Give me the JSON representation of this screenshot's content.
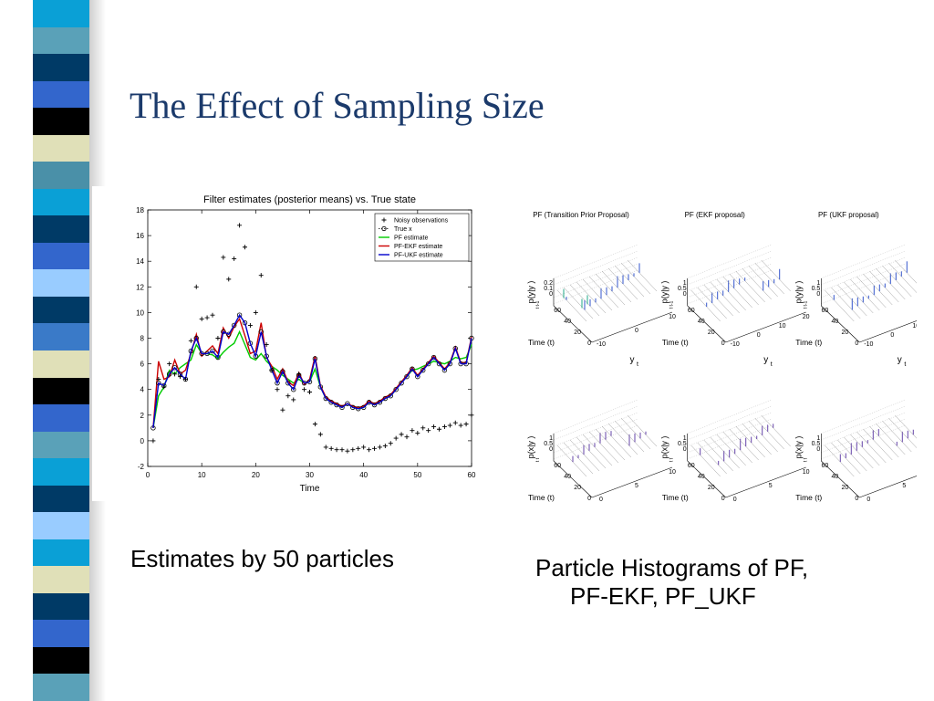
{
  "slide": {
    "title": "The Effect of Sampling Size",
    "caption_left": "Estimates by 50 particles",
    "caption_right_line1": "Particle Histograms of PF,",
    "caption_right_line2": "PF-EKF, PF_UKF"
  },
  "decoration": {
    "stripe_colors": [
      "#0aa0d6",
      "#5aa1b8",
      "#003a66",
      "#3366cc",
      "#000000",
      "#e0e0b8",
      "#4a90a8",
      "#0aa0d6",
      "#003a66",
      "#3366cc",
      "#99ccff",
      "#003a66",
      "#3a7ac8",
      "#e0e0b8",
      "#000000",
      "#3366cc",
      "#5aa1b8",
      "#0aa0d6",
      "#003a66",
      "#99ccff",
      "#0aa0d6",
      "#e0e0b8",
      "#003a66",
      "#3366cc",
      "#000000",
      "#5aa1b8"
    ]
  },
  "chart_data": [
    {
      "type": "line",
      "title": "Filter estimates (posterior means) vs. True state",
      "xlabel": "Time",
      "ylabel": "",
      "xlim": [
        0,
        60
      ],
      "ylim": [
        -2,
        18
      ],
      "xticks": [
        0,
        10,
        20,
        30,
        40,
        50,
        60
      ],
      "yticks": [
        -2,
        0,
        2,
        4,
        6,
        8,
        10,
        12,
        14,
        16,
        18
      ],
      "grid": false,
      "legend": "top-right",
      "x": [
        1,
        2,
        3,
        4,
        5,
        6,
        7,
        8,
        9,
        10,
        11,
        12,
        13,
        14,
        15,
        16,
        17,
        18,
        19,
        20,
        21,
        22,
        23,
        24,
        25,
        26,
        27,
        28,
        29,
        30,
        31,
        32,
        33,
        34,
        35,
        36,
        37,
        38,
        39,
        40,
        41,
        42,
        43,
        44,
        45,
        46,
        47,
        48,
        49,
        50,
        51,
        52,
        53,
        54,
        55,
        56,
        57,
        58,
        59,
        60
      ],
      "series": [
        {
          "name": "Noisy observations",
          "color": "#000000",
          "style": "marker-plus",
          "values": [
            0,
            4.8,
            4.2,
            6,
            5.2,
            5,
            4.8,
            7.8,
            12,
            9.5,
            9.6,
            9.8,
            8,
            14.3,
            12.6,
            14.2,
            16.8,
            15.1,
            9,
            10,
            12.9,
            7.5,
            5.5,
            4,
            2.4,
            3.5,
            3.2,
            5.2,
            4,
            3.8,
            1.3,
            0.5,
            -0.5,
            -0.6,
            -0.7,
            -0.7,
            -0.8,
            -0.7,
            -0.6,
            -0.5,
            -0.7,
            -0.6,
            -0.5,
            -0.4,
            -0.2,
            0.2,
            0.5,
            0.3,
            0.8,
            0.6,
            1,
            0.8,
            1.1,
            0.9,
            1.1,
            1.2,
            1.4,
            1.2,
            1.3,
            2
          ]
        },
        {
          "name": "True x",
          "color": "#000000",
          "style": "dotted-circle",
          "values": [
            1,
            4.5,
            4.3,
            5.2,
            5.7,
            5.2,
            4.8,
            7,
            8,
            6.8,
            6.8,
            7,
            6.5,
            8.5,
            8.3,
            9,
            9.8,
            9.2,
            7.6,
            6.6,
            8.5,
            6.6,
            5.5,
            4.5,
            5.4,
            4.5,
            4,
            5.1,
            4.5,
            4.6,
            6.4,
            4.2,
            3.3,
            3,
            2.8,
            2.6,
            2.9,
            2.6,
            2.5,
            2.6,
            3,
            2.8,
            3,
            3.3,
            3.5,
            4,
            4.5,
            5,
            5.6,
            5,
            5.5,
            6,
            6.5,
            6,
            5.5,
            6,
            7.2,
            6,
            6,
            8
          ]
        },
        {
          "name": "PF estimate",
          "color": "#00cc00",
          "style": "line",
          "values": [
            1,
            3.5,
            4.2,
            5.5,
            5.2,
            5.7,
            6,
            6.3,
            7.5,
            6.8,
            6.8,
            6.7,
            6.4,
            6.9,
            7.3,
            7.6,
            8.5,
            7.5,
            6.5,
            6.3,
            6.8,
            6.2,
            5.8,
            5.5,
            5.1,
            4.8,
            4.5,
            4.8,
            4.5,
            4.6,
            5.6,
            4.2,
            3.3,
            3,
            2.8,
            2.6,
            2.9,
            2.6,
            2.5,
            2.6,
            3,
            2.8,
            3,
            3.3,
            3.5,
            4,
            4.6,
            5,
            5.5,
            5.6,
            5.8,
            6,
            6.2,
            6.1,
            6,
            6.2,
            6.5,
            6.4,
            6.5,
            7.5
          ]
        },
        {
          "name": "PF-EKF estimate",
          "color": "#cc0000",
          "style": "line",
          "values": [
            1,
            6.2,
            4.8,
            5,
            6.3,
            5.2,
            5.5,
            6.8,
            8.3,
            6.6,
            7,
            7.4,
            6.8,
            8.8,
            8,
            8.9,
            9.5,
            8.2,
            6.8,
            7,
            9.2,
            6.5,
            5.8,
            4.8,
            5.6,
            4.6,
            4.3,
            5.3,
            4.4,
            4.8,
            6.6,
            4.3,
            3.4,
            3.1,
            2.9,
            2.7,
            2.9,
            2.7,
            2.6,
            2.7,
            3.1,
            2.9,
            3.1,
            3.4,
            3.6,
            4.1,
            4.6,
            5.1,
            5.7,
            5.1,
            5.6,
            6.1,
            6.6,
            6.1,
            5.6,
            6.1,
            7.3,
            6.1,
            6.1,
            8.1
          ]
        },
        {
          "name": "PF-UKF estimate",
          "color": "#0000cc",
          "style": "line",
          "values": [
            1,
            4.5,
            4.3,
            5.2,
            5.7,
            5.2,
            4.8,
            7,
            8,
            6.8,
            6.8,
            7,
            6.5,
            8.5,
            8.3,
            9,
            9.8,
            9.2,
            7.6,
            6.6,
            8.5,
            6.6,
            5.5,
            4.5,
            5.4,
            4.5,
            4,
            5.1,
            4.5,
            4.6,
            6.4,
            4.2,
            3.3,
            3,
            2.8,
            2.6,
            2.9,
            2.6,
            2.5,
            2.6,
            3,
            2.8,
            3,
            3.3,
            3.5,
            4,
            4.5,
            5,
            5.6,
            5,
            5.5,
            6,
            6.5,
            6,
            5.5,
            6,
            7.2,
            6,
            6,
            8
          ]
        }
      ]
    },
    {
      "type": "other",
      "description_kind": "3d-waterfall-grid",
      "panels": [
        {
          "title": "PF (Transition Prior Proposal)",
          "zlabel": "p(y|y )",
          "zsub": "t  t-1",
          "ylabel": "Time (t)",
          "xlabel": "y",
          "xsub": "t",
          "zticks": [
            "0.2",
            "0.1",
            "0"
          ],
          "time_ticks": [
            "0",
            "20",
            "40",
            "60"
          ],
          "x_ticks": [
            "-10",
            "0",
            "10"
          ],
          "color": "#3355cc",
          "accent": "#22aa88"
        },
        {
          "title": "PF (EKF proposal)",
          "zlabel": "p(y|y )",
          "zsub": "t  t-1",
          "ylabel": "Time (t)",
          "xlabel": "y",
          "xsub": "t",
          "zticks": [
            "1",
            "0.5",
            "0"
          ],
          "time_ticks": [
            "0",
            "20",
            "40",
            "60"
          ],
          "x_ticks": [
            "-10",
            "0",
            "10",
            "20"
          ],
          "color": "#3355cc",
          "accent": ""
        },
        {
          "title": "PF (UKF proposal)",
          "zlabel": "p(y|y )",
          "zsub": "t  t-1",
          "ylabel": "Time (t)",
          "xlabel": "y",
          "xsub": "t",
          "zticks": [
            "1",
            "0.5",
            "0"
          ],
          "time_ticks": [
            "0",
            "20",
            "40",
            "60"
          ],
          "x_ticks": [
            "-10",
            "0",
            "10",
            "20"
          ],
          "color": "#3355cc",
          "accent": ""
        },
        {
          "title": "",
          "zlabel": "p(x|y )",
          "zsub": "t  t",
          "ylabel": "Time (t)",
          "xlabel": "x",
          "xsub": "t",
          "zticks": [
            "1",
            "0.5",
            "0"
          ],
          "time_ticks": [
            "0",
            "20",
            "40",
            "60"
          ],
          "x_ticks": [
            "0",
            "5",
            "10"
          ],
          "color": "#6644aa",
          "accent": ""
        },
        {
          "title": "",
          "zlabel": "p(x|y )",
          "zsub": "t  t",
          "ylabel": "Time (t)",
          "xlabel": "x",
          "xsub": "t",
          "zticks": [
            "1",
            "0.5",
            "0"
          ],
          "time_ticks": [
            "0",
            "20",
            "40",
            "60"
          ],
          "x_ticks": [
            "0",
            "5",
            "10"
          ],
          "color": "#6644aa",
          "accent": ""
        },
        {
          "title": "",
          "zlabel": "p(x|y )",
          "zsub": "t  t",
          "ylabel": "Time (t)",
          "xlabel": "x",
          "xsub": "t",
          "zticks": [
            "1",
            "0.5",
            "0"
          ],
          "time_ticks": [
            "0",
            "20",
            "40",
            "60"
          ],
          "x_ticks": [
            "0",
            "5",
            "10"
          ],
          "color": "#6644aa",
          "accent": ""
        }
      ]
    }
  ]
}
